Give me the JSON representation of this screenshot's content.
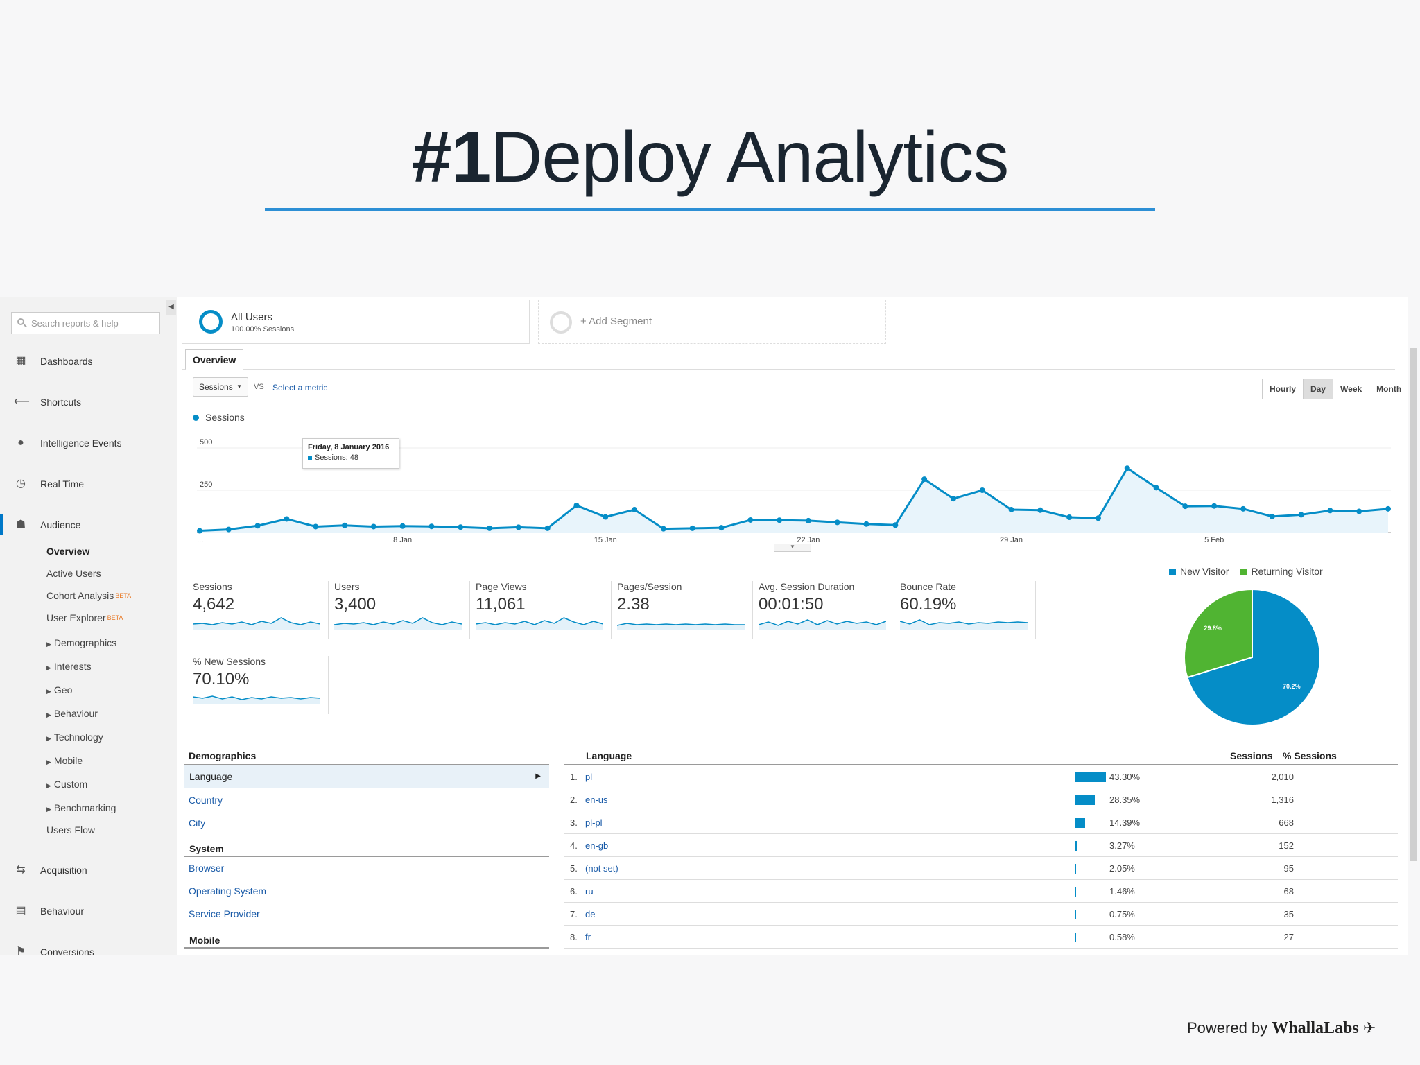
{
  "slide": {
    "title_hash": "#1",
    "title_text": "Deploy Analytics",
    "footer_prefix": "Powered by",
    "footer_brand": "WhallaLabs"
  },
  "sidebar": {
    "search_placeholder": "Search reports & help",
    "nav": [
      "Dashboards",
      "Shortcuts",
      "Intelligence Events",
      "Real Time",
      "Audience",
      "Acquisition",
      "Behaviour",
      "Conversions"
    ],
    "audience_items": [
      "Overview",
      "Active Users",
      "Cohort Analysis",
      "User Explorer",
      "Demographics",
      "Interests",
      "Geo",
      "Behaviour",
      "Technology",
      "Mobile",
      "Custom",
      "Benchmarking",
      "Users Flow"
    ],
    "beta": "BETA"
  },
  "segments": {
    "all_users": "All Users",
    "all_users_sub": "100.00% Sessions",
    "add": "+ Add Segment"
  },
  "tab": "Overview",
  "controls": {
    "metric": "Sessions",
    "vs": "VS",
    "select_metric": "Select a metric",
    "time": [
      "Hourly",
      "Day",
      "Week",
      "Month"
    ],
    "time_selected": "Day"
  },
  "chart_data": {
    "type": "line",
    "series": [
      {
        "name": "Sessions",
        "values": [
          10,
          18,
          40,
          80,
          35,
          42,
          35,
          38,
          36,
          32,
          25,
          31,
          25,
          160,
          92,
          135,
          22,
          25,
          28,
          74,
          73,
          70,
          60,
          50,
          44,
          315,
          200,
          250,
          135,
          132,
          90,
          85,
          380,
          265,
          155,
          157,
          140,
          95,
          105,
          130,
          125,
          140
        ]
      }
    ],
    "x_tick_labels": [
      "...",
      "8 Jan",
      "15 Jan",
      "22 Jan",
      "29 Jan",
      "5 Feb"
    ],
    "y_tick_labels": [
      "500",
      "250"
    ],
    "ylim": [
      0,
      500
    ],
    "tooltip": {
      "date": "Friday, 8 January 2016",
      "label": "Sessions: 48"
    }
  },
  "kpis": [
    {
      "label": "Sessions",
      "value": "4,642"
    },
    {
      "label": "Users",
      "value": "3,400"
    },
    {
      "label": "Page Views",
      "value": "11,061"
    },
    {
      "label": "Pages/Session",
      "value": "2.38"
    },
    {
      "label": "Avg. Session Duration",
      "value": "00:01:50"
    },
    {
      "label": "Bounce Rate",
      "value": "60.19%"
    },
    {
      "label": "% New Sessions",
      "value": "70.10%"
    }
  ],
  "pie": {
    "legend": [
      "New Visitor",
      "Returning Visitor"
    ],
    "slices": [
      {
        "name": "New Visitor",
        "value": 70.2,
        "label": "70.2%",
        "color": "#058dc7"
      },
      {
        "name": "Returning Visitor",
        "value": 29.8,
        "label": "29.8%",
        "color": "#50b432"
      }
    ]
  },
  "demographics": {
    "header": "Demographics",
    "items": [
      "Language",
      "Country",
      "City"
    ],
    "system_header": "System",
    "system_items": [
      "Browser",
      "Operating System",
      "Service Provider"
    ],
    "mobile_header": "Mobile"
  },
  "language_table": {
    "headers": [
      "Language",
      "Sessions",
      "% Sessions"
    ],
    "rows": [
      {
        "n": "1.",
        "lang": "pl",
        "sessions": "2,010",
        "pct": "43.30%",
        "frac": 0.433
      },
      {
        "n": "2.",
        "lang": "en-us",
        "sessions": "1,316",
        "pct": "28.35%",
        "frac": 0.2835
      },
      {
        "n": "3.",
        "lang": "pl-pl",
        "sessions": "668",
        "pct": "14.39%",
        "frac": 0.1439
      },
      {
        "n": "4.",
        "lang": "en-gb",
        "sessions": "152",
        "pct": "3.27%",
        "frac": 0.0327
      },
      {
        "n": "5.",
        "lang": "(not set)",
        "sessions": "95",
        "pct": "2.05%",
        "frac": 0.0205
      },
      {
        "n": "6.",
        "lang": "ru",
        "sessions": "68",
        "pct": "1.46%",
        "frac": 0.0146
      },
      {
        "n": "7.",
        "lang": "de",
        "sessions": "35",
        "pct": "0.75%",
        "frac": 0.0075
      },
      {
        "n": "8.",
        "lang": "fr",
        "sessions": "27",
        "pct": "0.58%",
        "frac": 0.0058
      }
    ]
  },
  "colors": {
    "accent": "#058dc7",
    "green": "#50b432",
    "link": "#1a5ba8",
    "title_rule": "#2d8fd5"
  }
}
